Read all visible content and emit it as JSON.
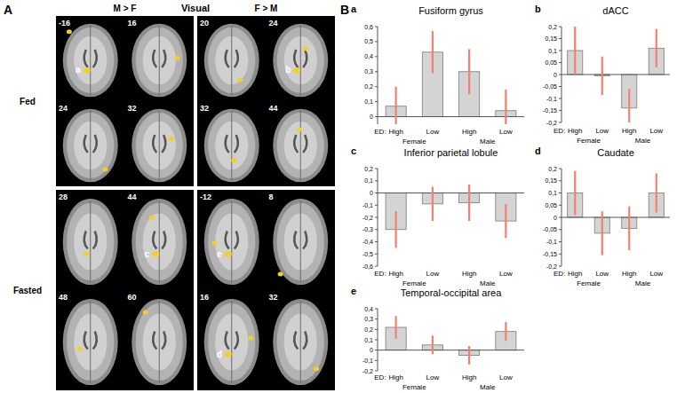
{
  "panel_a": {
    "label": "A",
    "title": "Visual",
    "columns": [
      "M > F",
      "F > M"
    ],
    "rows": [
      {
        "label": "Fed",
        "cells": [
          [
            {
              "slice": -16,
              "region": "a"
            },
            {
              "slice": 16
            },
            {
              "slice": 24
            },
            {
              "slice": 32
            }
          ],
          [
            {
              "slice": 20
            },
            {
              "slice": 24,
              "region": "b"
            },
            {
              "slice": 32
            },
            {
              "slice": 44
            }
          ]
        ]
      },
      {
        "label": "Fasted",
        "cells": [
          [
            {
              "slice": 28
            },
            {
              "slice": 44,
              "region": "c"
            },
            {
              "slice": 48
            },
            {
              "slice": 60
            }
          ],
          [
            {
              "slice": -12,
              "region": "e"
            },
            {
              "slice": 8
            },
            {
              "slice": 16,
              "region": "d"
            },
            {
              "slice": 32
            }
          ]
        ]
      }
    ]
  },
  "panel_b": {
    "label": "B"
  },
  "chart_data": [
    {
      "type": "bar",
      "label": "a",
      "title": "Fusiform gyrus",
      "category_prefix": "ED:",
      "groups": [
        "Female",
        "Male"
      ],
      "categories": [
        "High",
        "Low",
        "High",
        "Low"
      ],
      "values": [
        0.07,
        0.43,
        0.3,
        0.04
      ],
      "errors": [
        0.13,
        0.14,
        0.15,
        0.14
      ],
      "color": "#d4d4d4",
      "ylim": [
        -0.05,
        0.6
      ],
      "yticks": [
        0,
        {
          "value": 0.1,
          "label": "0,1"
        },
        {
          "value": 0.2,
          "label": "0,2"
        },
        {
          "value": 0.3,
          "label": "0,3"
        },
        {
          "value": 0.4,
          "label": "0,4"
        },
        {
          "value": 0.5,
          "label": "0,5"
        },
        {
          "value": 0.6,
          "label": "0,6"
        }
      ]
    },
    {
      "type": "bar",
      "label": "b",
      "title": "dACC",
      "category_prefix": "ED:",
      "groups": [
        "Female",
        "Male"
      ],
      "categories": [
        "High",
        "Low",
        "High",
        "Low"
      ],
      "values": [
        0.1,
        -0.005,
        -0.14,
        0.11
      ],
      "errors": [
        0.1,
        0.08,
        0.08,
        0.08
      ],
      "color": "#d4d4d4",
      "ylim": [
        -0.2,
        0.2
      ],
      "yticks": [
        {
          "value": -0.2,
          "label": "-0,2"
        },
        {
          "value": -0.15,
          "label": "-0,15"
        },
        {
          "value": -0.1,
          "label": "-0,1"
        },
        {
          "value": -0.05,
          "label": "-0,05"
        },
        0,
        {
          "value": 0.05,
          "label": "0,05"
        },
        {
          "value": 0.1,
          "label": "0,1"
        },
        {
          "value": 0.15,
          "label": "0,15"
        },
        {
          "value": 0.2,
          "label": "0,2"
        }
      ]
    },
    {
      "type": "bar",
      "label": "c",
      "title": "Inferior parietal lobule",
      "category_prefix": "ED:",
      "groups": [
        "Female",
        "Male"
      ],
      "categories": [
        "High",
        "Low",
        "High",
        "Low"
      ],
      "values": [
        -0.3,
        -0.09,
        -0.08,
        -0.23
      ],
      "errors": [
        0.15,
        0.14,
        0.15,
        0.14
      ],
      "color": "#d4d4d4",
      "ylim": [
        -0.6,
        0.2
      ],
      "yticks": [
        {
          "value": -0.6,
          "label": "-0,6"
        },
        {
          "value": -0.5,
          "label": "-0,5"
        },
        {
          "value": -0.4,
          "label": "-0,4"
        },
        {
          "value": -0.3,
          "label": "-0,3"
        },
        {
          "value": -0.2,
          "label": "-0,2"
        },
        {
          "value": -0.1,
          "label": "-0,1"
        },
        0,
        {
          "value": 0.1,
          "label": "0,1"
        },
        {
          "value": 0.2,
          "label": "0,2"
        }
      ]
    },
    {
      "type": "bar",
      "label": "d",
      "title": "Caudate",
      "category_prefix": "ED:",
      "groups": [
        "Female",
        "Male"
      ],
      "categories": [
        "High",
        "Low",
        "High",
        "Low"
      ],
      "values": [
        0.1,
        -0.065,
        -0.045,
        0.1
      ],
      "errors": [
        0.09,
        0.09,
        0.09,
        0.08
      ],
      "color": "#d4d4d4",
      "ylim": [
        -0.2,
        0.2
      ],
      "yticks": [
        {
          "value": -0.2,
          "label": "-0,2"
        },
        {
          "value": -0.15,
          "label": "-0,15"
        },
        {
          "value": -0.1,
          "label": "-0,1"
        },
        {
          "value": -0.05,
          "label": "-0,05"
        },
        0,
        {
          "value": 0.05,
          "label": "0,05"
        },
        {
          "value": 0.1,
          "label": "0,1"
        },
        {
          "value": 0.15,
          "label": "0,15"
        },
        {
          "value": 0.2,
          "label": "0,2"
        }
      ]
    },
    {
      "type": "bar",
      "label": "e",
      "title": "Temporal-occipital area",
      "category_prefix": "ED:",
      "groups": [
        "Female",
        "Male"
      ],
      "categories": [
        "High",
        "Low",
        "High",
        "Low"
      ],
      "values": [
        0.22,
        0.05,
        -0.05,
        0.18
      ],
      "errors": [
        0.11,
        0.09,
        0.09,
        0.09
      ],
      "color": "#d4d4d4",
      "ylim": [
        -0.2,
        0.4
      ],
      "yticks": [
        {
          "value": -0.2,
          "label": "-0,2"
        },
        {
          "value": -0.1,
          "label": "-0,1"
        },
        0,
        {
          "value": 0.1,
          "label": "0,1"
        },
        {
          "value": 0.2,
          "label": "0,2"
        },
        {
          "value": 0.3,
          "label": "0,3"
        },
        {
          "value": 0.4,
          "label": "0,4"
        }
      ]
    }
  ]
}
